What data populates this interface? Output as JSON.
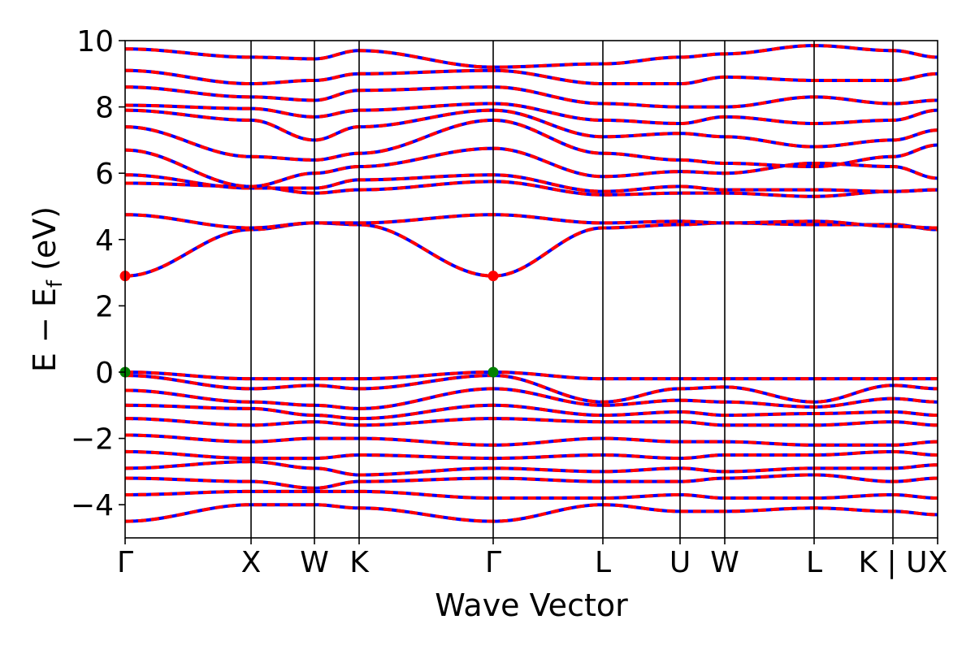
{
  "chart_data": {
    "type": "line",
    "title": "",
    "xlabel": "Wave Vector",
    "ylabel": {
      "main": "E − E",
      "subscript": "f",
      "unit": "(eV)"
    },
    "ylim": [
      -5,
      10
    ],
    "yticks": [
      "10",
      "8",
      "6",
      "4",
      "2",
      "0",
      "−2",
      "−4"
    ],
    "ytick_values": [
      10,
      8,
      6,
      4,
      2,
      0,
      -2,
      -4
    ],
    "kpath_ticks": [
      {
        "label": "Γ",
        "x": 0.0
      },
      {
        "label": "X",
        "x": 0.155
      },
      {
        "label": "W",
        "x": 0.233
      },
      {
        "label": "K",
        "x": 0.288
      },
      {
        "label": "Γ",
        "x": 0.453
      },
      {
        "label": "L",
        "x": 0.588
      },
      {
        "label": "U",
        "x": 0.683
      },
      {
        "label": "W",
        "x": 0.738
      },
      {
        "label": "L",
        "x": 0.848
      },
      {
        "label": "K | U",
        "x": 0.945
      },
      {
        "label": "X",
        "x": 1.0
      }
    ],
    "band_colors": {
      "spin_up": "#0000ff",
      "spin_down": "#ff0000"
    },
    "markers": [
      {
        "name": "CBM",
        "x": 0.0,
        "y": 2.9,
        "color": "#ff0000"
      },
      {
        "name": "CBM",
        "x": 0.453,
        "y": 2.9,
        "color": "#ff0000"
      },
      {
        "name": "VBM",
        "x": 0.0,
        "y": 0.0,
        "color": "#008000"
      },
      {
        "name": "VBM",
        "x": 0.453,
        "y": 0.0,
        "color": "#008000"
      }
    ],
    "bands": [
      [
        2.9,
        4.3,
        4.5,
        4.45,
        2.9,
        4.35,
        4.45,
        4.5,
        4.45,
        4.45,
        4.3
      ],
      [
        4.75,
        4.35,
        4.5,
        4.5,
        4.75,
        4.5,
        4.55,
        4.5,
        4.55,
        4.4,
        4.35
      ],
      [
        5.7,
        5.6,
        5.4,
        5.5,
        5.75,
        5.35,
        5.4,
        5.4,
        5.3,
        5.45,
        5.5
      ],
      [
        5.95,
        5.55,
        5.55,
        5.8,
        5.95,
        5.45,
        5.6,
        5.5,
        5.5,
        5.45,
        5.5
      ],
      [
        6.7,
        5.6,
        6.0,
        6.2,
        6.75,
        5.9,
        6.05,
        6.0,
        6.3,
        6.2,
        5.85
      ],
      [
        7.4,
        6.5,
        6.4,
        6.6,
        7.6,
        6.6,
        6.4,
        6.3,
        6.2,
        6.5,
        6.85
      ],
      [
        7.9,
        7.6,
        7.0,
        7.4,
        7.9,
        7.1,
        7.2,
        7.1,
        6.8,
        7.0,
        7.3
      ],
      [
        8.05,
        7.95,
        7.7,
        7.9,
        8.1,
        7.6,
        7.5,
        7.7,
        7.5,
        7.6,
        7.9
      ],
      [
        8.6,
        8.3,
        8.2,
        8.5,
        8.6,
        8.1,
        8.0,
        8.0,
        8.3,
        8.1,
        8.2
      ],
      [
        9.1,
        8.7,
        8.8,
        9.0,
        9.1,
        8.7,
        8.7,
        8.9,
        8.8,
        8.8,
        9.0
      ],
      [
        9.75,
        9.5,
        9.45,
        9.7,
        9.2,
        9.3,
        9.5,
        9.6,
        9.85,
        9.7,
        9.5
      ],
      [
        0.0,
        -0.2,
        -0.2,
        -0.2,
        0.0,
        -0.2,
        -0.2,
        -0.2,
        -0.2,
        -0.2,
        -0.2
      ],
      [
        -0.1,
        -0.5,
        -0.4,
        -0.5,
        -0.1,
        -0.9,
        -0.5,
        -0.45,
        -0.9,
        -0.4,
        -0.5
      ],
      [
        -0.55,
        -0.9,
        -1.0,
        -1.1,
        -0.5,
        -1.0,
        -0.85,
        -0.9,
        -1.05,
        -0.8,
        -0.9
      ],
      [
        -1.0,
        -1.1,
        -1.3,
        -1.4,
        -1.0,
        -1.3,
        -1.2,
        -1.3,
        -1.25,
        -1.2,
        -1.3
      ],
      [
        -1.4,
        -1.6,
        -1.5,
        -1.6,
        -1.4,
        -1.5,
        -1.5,
        -1.6,
        -1.6,
        -1.5,
        -1.6
      ],
      [
        -1.9,
        -2.1,
        -2.0,
        -2.0,
        -2.2,
        -2.0,
        -2.1,
        -2.1,
        -2.2,
        -2.2,
        -2.1
      ],
      [
        -2.4,
        -2.6,
        -2.6,
        -2.5,
        -2.6,
        -2.5,
        -2.6,
        -2.5,
        -2.5,
        -2.4,
        -2.5
      ],
      [
        -2.9,
        -2.7,
        -2.9,
        -3.1,
        -2.9,
        -3.0,
        -2.9,
        -3.0,
        -2.9,
        -2.9,
        -2.8
      ],
      [
        -3.2,
        -3.3,
        -3.5,
        -3.3,
        -3.2,
        -3.3,
        -3.3,
        -3.2,
        -3.1,
        -3.3,
        -3.2
      ],
      [
        -3.7,
        -3.6,
        -3.6,
        -3.6,
        -3.8,
        -3.8,
        -3.7,
        -3.8,
        -3.8,
        -3.7,
        -3.8
      ],
      [
        -4.5,
        -4.0,
        -4.0,
        -4.1,
        -4.5,
        -4.0,
        -4.2,
        -4.2,
        -4.1,
        -4.2,
        -4.3
      ]
    ]
  }
}
